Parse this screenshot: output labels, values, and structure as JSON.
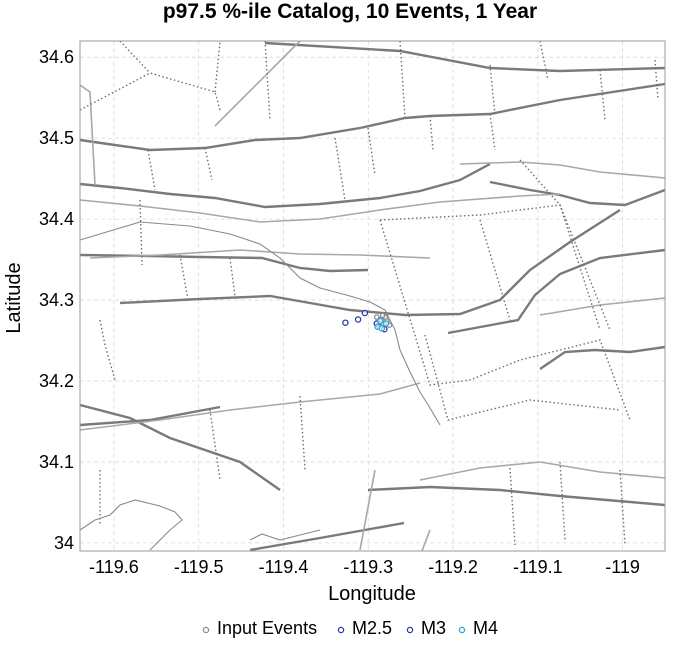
{
  "chart_data": {
    "type": "scatter",
    "title": "p97.5 %-ile Catalog, 10 Events, 1 Year",
    "xlabel": "Longitude",
    "ylabel": "Latitude",
    "xlim": [
      -119.64,
      -118.95
    ],
    "ylim": [
      33.99,
      34.62
    ],
    "x_ticks": [
      -119.6,
      -119.5,
      -119.4,
      -119.3,
      -119.2,
      -119.1,
      -119.0
    ],
    "x_tick_labels": [
      "-119.6",
      "-119.5",
      "-119.4",
      "-119.3",
      "-119.2",
      "-119.1",
      "-119"
    ],
    "y_ticks": [
      34.0,
      34.1,
      34.2,
      34.3,
      34.4,
      34.5,
      34.6
    ],
    "y_tick_labels": [
      "34",
      "34.1",
      "34.2",
      "34.3",
      "34.4",
      "34.5",
      "34.6"
    ],
    "grid": true,
    "legend_position": "bottom",
    "series": [
      {
        "name": "Input Events",
        "color": "#8c8c8c",
        "marker": "circle-small",
        "x": [
          -119.29,
          -119.285,
          -119.28,
          -119.282,
          -119.288,
          -119.278,
          -119.275,
          -119.283
        ],
        "y": [
          34.279,
          34.276,
          34.279,
          34.271,
          34.268,
          34.274,
          34.269,
          34.281
        ]
      },
      {
        "name": "M2.5",
        "color": "#2b3aa8",
        "marker": "circle",
        "x": [
          -119.327,
          -119.312,
          -119.29,
          -119.281
        ],
        "y": [
          34.272,
          34.276,
          34.271,
          34.264
        ]
      },
      {
        "name": "M3",
        "color": "#2b3aa8",
        "marker": "circle",
        "x": [
          -119.304
        ],
        "y": [
          34.284
        ]
      },
      {
        "name": "M4",
        "color": "#29a8d8",
        "marker": "circle",
        "x": [
          -119.289,
          -119.284,
          -119.286,
          -119.279
        ],
        "y": [
          34.267,
          34.265,
          34.274,
          34.271
        ]
      }
    ]
  }
}
